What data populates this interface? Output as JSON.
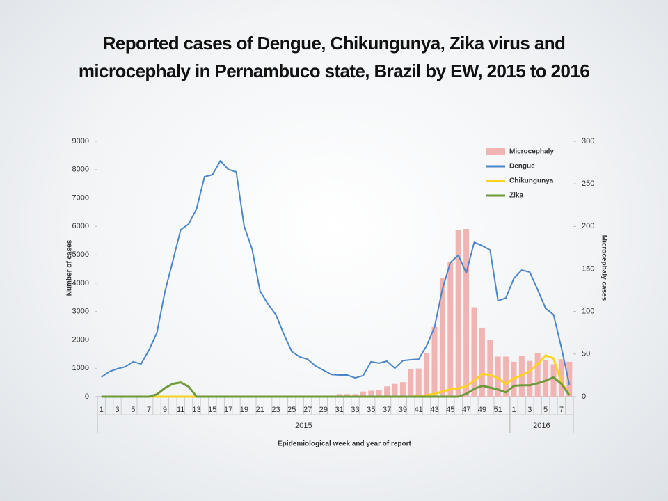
{
  "chart_data": {
    "type": "combo",
    "title": "Reported cases of Dengue, Chikungunya, Zika virus and\nmicrocephaly in Pernambuco state, Brazil by EW, 2015 to 2016",
    "x_label": "Epidemiological week and year of report",
    "y_label": "Number of cases",
    "y2_label": "Microcephaly cases",
    "year_labels": [
      "2015",
      "2016"
    ],
    "categories": [
      "1",
      null,
      "3",
      null,
      "5",
      null,
      "7",
      null,
      "9",
      null,
      "11",
      null,
      "13",
      null,
      "15",
      null,
      "17",
      null,
      "19",
      null,
      "21",
      null,
      "23",
      null,
      "25",
      null,
      "27",
      null,
      "29",
      null,
      "31",
      null,
      "33",
      null,
      "35",
      null,
      "37",
      null,
      "39",
      null,
      "41",
      null,
      "43",
      null,
      "45",
      null,
      "47",
      null,
      "49",
      null,
      "51",
      null,
      "1",
      null,
      "3",
      null,
      "5",
      null,
      "7",
      null
    ],
    "ylim": [
      0,
      9000
    ],
    "yticks": [
      0,
      1000,
      2000,
      3000,
      4000,
      5000,
      6000,
      7000,
      8000,
      9000
    ],
    "y2lim": [
      0,
      300
    ],
    "y2ticks": [
      0,
      50,
      100,
      150,
      200,
      250,
      300
    ],
    "grid": false,
    "legend": "top-right",
    "series": [
      {
        "name": "Microcephaly",
        "type": "bar",
        "axis": "y2",
        "color": "#f2b3b3",
        "values": [
          0,
          0,
          0,
          0,
          0,
          0,
          0,
          0,
          0,
          0,
          0,
          0,
          0,
          0,
          0,
          0,
          0,
          0,
          0,
          0,
          0,
          0,
          0,
          0,
          0,
          0,
          0,
          0,
          0,
          1,
          3,
          3,
          3,
          6,
          7,
          8,
          12,
          15,
          17,
          32,
          33,
          51,
          82,
          139,
          158,
          196,
          197,
          105,
          81,
          67,
          47,
          47,
          41,
          48,
          42,
          51,
          43,
          38,
          44,
          41
        ]
      },
      {
        "name": "Dengue",
        "type": "line",
        "color": "#4a86c8",
        "values": [
          690,
          880,
          980,
          1050,
          1230,
          1150,
          1640,
          2250,
          3680,
          4780,
          5880,
          6080,
          6620,
          7750,
          7820,
          8310,
          8010,
          7920,
          6000,
          5200,
          3720,
          3260,
          2890,
          2200,
          1590,
          1400,
          1320,
          1080,
          930,
          780,
          760,
          760,
          660,
          740,
          1230,
          1180,
          1250,
          1000,
          1270,
          1300,
          1320,
          1790,
          2450,
          3800,
          4730,
          4980,
          4360,
          5440,
          5320,
          5170,
          3380,
          3480,
          4170,
          4460,
          4390,
          3770,
          3110,
          2890,
          1720,
          420
        ]
      },
      {
        "name": "Chikungunya",
        "type": "line",
        "color": "#ffd21f",
        "values": [
          0,
          0,
          0,
          0,
          0,
          0,
          0,
          0,
          0,
          0,
          0,
          0,
          0,
          0,
          0,
          0,
          0,
          0,
          0,
          0,
          0,
          0,
          0,
          0,
          0,
          0,
          0,
          0,
          0,
          0,
          0,
          0,
          0,
          0,
          0,
          0,
          0,
          0,
          0,
          0,
          20,
          50,
          100,
          180,
          260,
          290,
          360,
          560,
          800,
          770,
          650,
          450,
          650,
          750,
          900,
          1150,
          1450,
          1350,
          500,
          80
        ]
      },
      {
        "name": "Zika",
        "type": "line",
        "color": "#6f9a3a",
        "values": [
          0,
          0,
          0,
          0,
          0,
          0,
          0,
          80,
          300,
          450,
          500,
          350,
          0,
          0,
          0,
          0,
          0,
          0,
          0,
          0,
          0,
          0,
          0,
          0,
          0,
          0,
          0,
          0,
          0,
          0,
          0,
          0,
          0,
          0,
          0,
          0,
          0,
          0,
          0,
          0,
          0,
          0,
          0,
          0,
          0,
          0,
          100,
          270,
          380,
          320,
          250,
          150,
          380,
          400,
          400,
          470,
          560,
          680,
          450,
          50
        ]
      }
    ]
  }
}
